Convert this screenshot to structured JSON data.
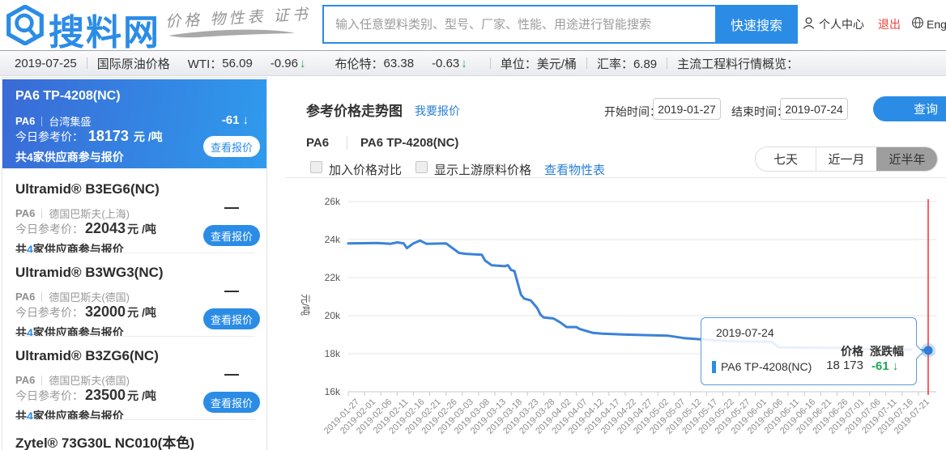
{
  "colors": {
    "accent": "#2b8ce6",
    "link": "#2a7fd4",
    "green": "#21a854",
    "red": "#e8413c",
    "line": "#3b82d8",
    "crosshair": "#ff2b2b"
  },
  "header": {
    "logo_text": "搜料网",
    "tagline": "价格 物性表 证书",
    "search": {
      "placeholder": "输入任意塑料类别、型号、厂家、性能、用途进行智能搜索",
      "button": "快速搜索"
    },
    "nav": {
      "user_center": "个人中心",
      "logout": "退出",
      "language": "English"
    }
  },
  "ticker": {
    "date": "2019-07-25",
    "oil_label": "国际原油价格",
    "wti_label": "WTI：",
    "wti_value": "56.09",
    "wti_change": "-0.96",
    "wti_arrow": "↓",
    "brent_label": "布伦特：",
    "brent_value": "63.38",
    "brent_change": "-0.63",
    "brent_arrow": "↓",
    "unit": "单位：美元/桶",
    "rate": "汇率：6.89",
    "overview": "主流工程料行情概览："
  },
  "sidebar": {
    "items": [
      {
        "title": "PA6 TP-4208(NC)",
        "category": "PA6",
        "vendor": "台湾集盛",
        "change": "-61",
        "change_arrow": "↓",
        "price_label": "今日参考价：",
        "price": "18173",
        "price_unit": "元 /吨",
        "sup_prefix": "共",
        "sup_count": "4",
        "sup_suffix": "家供应商参与报价",
        "button": "查看报价"
      },
      {
        "title": "Ultramid® B3EG6(NC)",
        "category": "PA6",
        "vendor": "德国巴斯夫(上海)",
        "change": "—",
        "price_label": "今日参考价：",
        "price": "22043",
        "price_unit": "元 /吨",
        "sup_prefix": "共",
        "sup_count": "4",
        "sup_suffix": "家供应商参与报价",
        "button": "查看报价"
      },
      {
        "title": "Ultramid® B3WG3(NC)",
        "category": "PA6",
        "vendor": "德国巴斯夫(德国)",
        "change": "—",
        "price_label": "今日参考价：",
        "price": "32000",
        "price_unit": "元 /吨",
        "sup_prefix": "共",
        "sup_count": "4",
        "sup_suffix": "家供应商参与报价",
        "button": "查看报价"
      },
      {
        "title": "Ultramid® B3ZG6(NC)",
        "category": "PA6",
        "vendor": "德国巴斯夫(德国)",
        "change": "—",
        "price_label": "今日参考价：",
        "price": "23500",
        "price_unit": "元 /吨",
        "sup_prefix": "共",
        "sup_count": "4",
        "sup_suffix": "家供应商参与报价",
        "button": "查看报价"
      },
      {
        "title": "Zytel® 73G30L NC010(本色)"
      }
    ]
  },
  "main": {
    "title": "参考价格走势图",
    "quote_link": "我要报价",
    "start_label": "开始时间：",
    "start_value": "2019-01-27",
    "end_label": "结束时间：",
    "end_value": "2019-07-24",
    "query_button": "查询",
    "breadcrumb1": "PA6",
    "breadcrumb2": "PA6 TP-4208(NC)",
    "checkbox1": "加入价格对比",
    "checkbox2": "显示上游原料价格",
    "props_link": "查看物性表",
    "range_tabs": [
      {
        "label": "七天"
      },
      {
        "label": "近一月"
      },
      {
        "label": "近半年"
      }
    ]
  },
  "tooltip": {
    "date": "2019-07-24",
    "col_price": "价格",
    "col_change": "涨跌幅",
    "series_name": "PA6 TP-4208(NC)",
    "price": "18 173",
    "change": "-61",
    "arrow": "↓"
  },
  "chart_data": {
    "type": "line",
    "title": "",
    "xlabel": "",
    "ylabel": "元/吨",
    "ylim": [
      16000,
      26000
    ],
    "grid": "horizontal",
    "legend_position": "none",
    "yticks": [
      {
        "label": "26k",
        "value": 26000
      },
      {
        "label": "24k",
        "value": 24000
      },
      {
        "label": "22k",
        "value": 22000
      },
      {
        "label": "20k",
        "value": 20000
      },
      {
        "label": "18k",
        "value": 18000
      },
      {
        "label": "16k",
        "value": 16000
      }
    ],
    "x_labels": [
      "2019-01-27",
      "2019-02-01",
      "2019-02-06",
      "2019-02-11",
      "2019-02-16",
      "2019-02-21",
      "2019-02-26",
      "2019-03-03",
      "2019-03-08",
      "2019-03-13",
      "2019-03-18",
      "2019-03-23",
      "2019-03-28",
      "2019-04-02",
      "2019-04-07",
      "2019-04-12",
      "2019-04-17",
      "2019-04-22",
      "2019-04-27",
      "2019-05-02",
      "2019-05-07",
      "2019-05-12",
      "2019-05-17",
      "2019-05-22",
      "2019-05-27",
      "2019-06-01",
      "2019-06-06",
      "2019-06-11",
      "2019-06-16",
      "2019-06-21",
      "2019-06-26",
      "2019-07-01",
      "2019-07-06",
      "2019-07-11",
      "2019-07-16",
      "2019-07-21"
    ],
    "series": [
      {
        "name": "PA6 TP-4208(NC)",
        "color": "#3b82d8",
        "points": [
          [
            "2019-01-27",
            23800
          ],
          [
            "2019-02-05",
            23820
          ],
          [
            "2019-02-09",
            23780
          ],
          [
            "2019-02-11",
            23850
          ],
          [
            "2019-02-13",
            23800
          ],
          [
            "2019-02-14",
            23550
          ],
          [
            "2019-02-16",
            23800
          ],
          [
            "2019-02-18",
            23950
          ],
          [
            "2019-02-20",
            23780
          ],
          [
            "2019-02-26",
            23800
          ],
          [
            "2019-03-02",
            23300
          ],
          [
            "2019-03-04",
            23250
          ],
          [
            "2019-03-09",
            23200
          ],
          [
            "2019-03-10",
            22900
          ],
          [
            "2019-03-12",
            22650
          ],
          [
            "2019-03-16",
            22600
          ],
          [
            "2019-03-17",
            22650
          ],
          [
            "2019-03-18",
            22400
          ],
          [
            "2019-03-19",
            22350
          ],
          [
            "2019-03-21",
            21100
          ],
          [
            "2019-03-22",
            20900
          ],
          [
            "2019-03-24",
            20800
          ],
          [
            "2019-03-26",
            20400
          ],
          [
            "2019-03-27",
            20050
          ],
          [
            "2019-03-28",
            19900
          ],
          [
            "2019-03-31",
            19850
          ],
          [
            "2019-04-02",
            19650
          ],
          [
            "2019-04-04",
            19400
          ],
          [
            "2019-04-07",
            19400
          ],
          [
            "2019-04-08",
            19300
          ],
          [
            "2019-04-10",
            19200
          ],
          [
            "2019-04-12",
            19100
          ],
          [
            "2019-04-15",
            19050
          ],
          [
            "2019-04-23",
            19000
          ],
          [
            "2019-05-05",
            18950
          ],
          [
            "2019-05-10",
            18820
          ],
          [
            "2019-05-23",
            18660
          ],
          [
            "2019-06-06",
            18620
          ],
          [
            "2019-06-08",
            18330
          ],
          [
            "2019-06-27",
            18300
          ],
          [
            "2019-06-30",
            18250
          ],
          [
            "2019-07-15",
            18230
          ],
          [
            "2019-07-24",
            18173
          ]
        ]
      }
    ],
    "end_marker": {
      "date": "2019-07-24",
      "value": 18173,
      "change": -61
    },
    "crosshair_color": "#ff2b2b"
  }
}
